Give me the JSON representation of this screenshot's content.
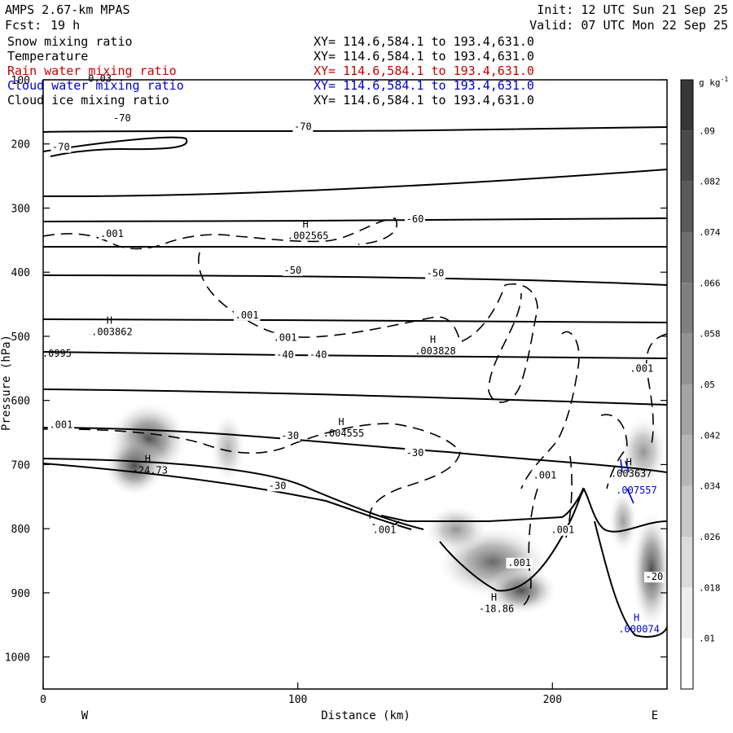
{
  "header": {
    "model": "AMPS 2.67-km MPAS",
    "fcst_label": "Fcst:",
    "fcst_value": "19 h",
    "init": "Init: 12 UTC Sun 21 Sep 25",
    "valid": "Valid: 07 UTC Mon 22 Sep 25"
  },
  "fields": [
    {
      "name": "Snow mixing ratio",
      "xy": "XY= 114.6,584.1 to 193.4,631.0",
      "color": "#000000"
    },
    {
      "name": "Temperature",
      "xy": "XY= 114.6,584.1 to 193.4,631.0",
      "color": "#000000"
    },
    {
      "name": "Rain water mixing ratio",
      "xy": "XY= 114.6,584.1 to 193.4,631.0",
      "color": "#cc0000"
    },
    {
      "name": "Cloud water mixing ratio",
      "xy": "XY= 114.6,584.1 to 193.4,631.0",
      "color": "#0000cc"
    },
    {
      "name": "Cloud ice mixing ratio",
      "xy": "XY= 114.6,584.1 to 193.4,631.0",
      "color": "#000000"
    }
  ],
  "chart_data": {
    "type": "cross-section contour",
    "xlabel": "Distance (km)",
    "ylabel": "Pressure (hPa)",
    "xlim": [
      0,
      245
    ],
    "ylim": [
      1050,
      100
    ],
    "x_ticks": [
      0,
      100,
      200
    ],
    "y_ticks": [
      100,
      200,
      300,
      400,
      500,
      600,
      700,
      800,
      900,
      1000
    ],
    "left_end_label": "W",
    "right_end_label": "E",
    "colorbar": {
      "unit": "g kg",
      "unit_exp": "-1",
      "levels": [
        ".01",
        ".018",
        ".026",
        ".034",
        ".042",
        ".05",
        ".058",
        ".066",
        ".074",
        ".082",
        ".09"
      ]
    },
    "temperature_labels": [
      {
        "text": "-70",
        "x": 31,
        "p": 165
      },
      {
        "text": "-70",
        "x": 7,
        "p": 210
      },
      {
        "text": "-70",
        "x": 102,
        "p": 178
      },
      {
        "text": "-60",
        "x": 146,
        "p": 322
      },
      {
        "text": "-50",
        "x": 98,
        "p": 402
      },
      {
        "text": "-50",
        "x": 154,
        "p": 407
      },
      {
        "text": "-40",
        "x": 95,
        "p": 534
      },
      {
        "text": "-40",
        "x": 108,
        "p": 534
      },
      {
        "text": "-30",
        "x": 97,
        "p": 660
      },
      {
        "text": "-30",
        "x": 146,
        "p": 687
      },
      {
        "text": "-30",
        "x": 92,
        "p": 738
      },
      {
        "text": "-20",
        "x": 240,
        "p": 880
      }
    ],
    "snow_labels": [
      {
        "text": ".001",
        "x": 27,
        "p": 345
      },
      {
        "text": ".001",
        "x": 80,
        "p": 472
      },
      {
        "text": ".001",
        "x": 95,
        "p": 507
      },
      {
        "text": ".001",
        "x": 7,
        "p": 643
      },
      {
        "text": ".001",
        "x": 134,
        "p": 807
      },
      {
        "text": ".001",
        "x": 197,
        "p": 722
      },
      {
        "text": ".001",
        "x": 204,
        "p": 807
      },
      {
        "text": ".001",
        "x": 187,
        "p": 858
      },
      {
        "text": ".001",
        "x": 235,
        "p": 555
      }
    ],
    "extrema": [
      {
        "mark": "H",
        "value": ".002565",
        "x": 104,
        "p": 348,
        "color": "#000000"
      },
      {
        "mark": "H",
        "value": ".003862",
        "x": 27,
        "p": 498,
        "color": "#000000"
      },
      {
        "mark": "H",
        "value": ".003828",
        "x": 154,
        "p": 528,
        "color": "#000000"
      },
      {
        "mark": "H",
        "value": ".004555",
        "x": 118,
        "p": 656,
        "color": "#000000"
      },
      {
        "mark": "H",
        "value": "-24.73",
        "x": 42,
        "p": 714,
        "color": "#000000"
      },
      {
        "mark": "H",
        "value": "-18.86",
        "x": 178,
        "p": 930,
        "color": "#000000"
      },
      {
        "mark": "H",
        "value": ".003637",
        "x": 231,
        "p": 719,
        "color": "#000000"
      },
      {
        "mark": "",
        "value": ".007557",
        "x": 233,
        "p": 745,
        "color": "#0000cc"
      },
      {
        "mark": "H",
        "value": ".000074",
        "x": 234,
        "p": 962,
        "color": "#0000cc"
      }
    ],
    "partial_labels": [
      {
        "text": ".0995",
        "x": -1,
        "p": 532
      },
      {
        "text": "0.03",
        "x": 17,
        "p": 103
      }
    ]
  }
}
